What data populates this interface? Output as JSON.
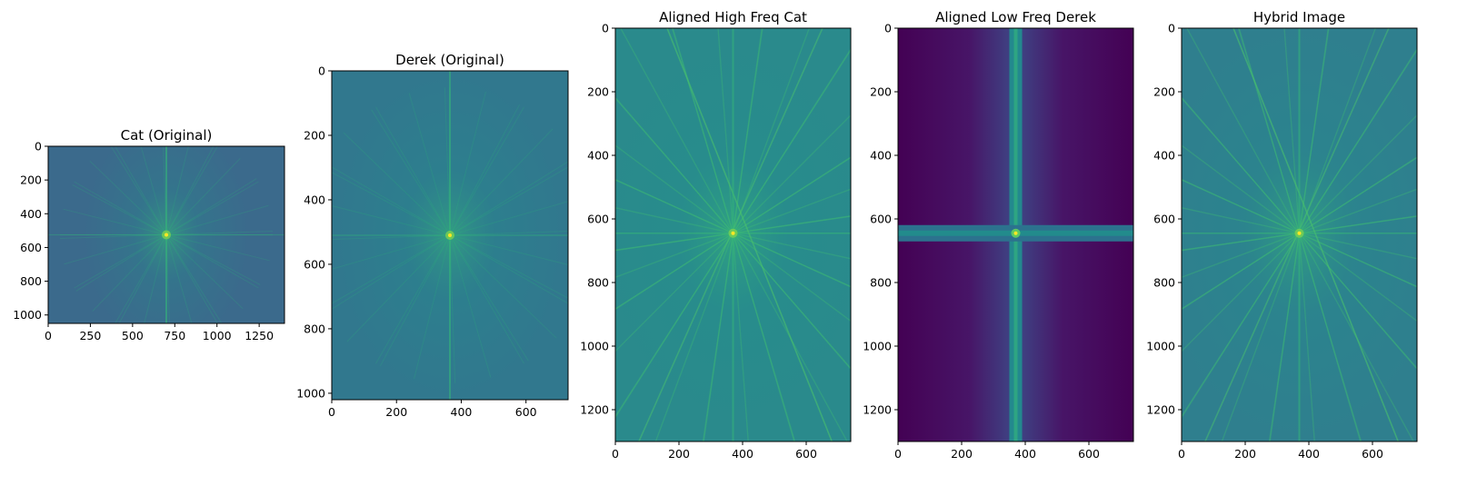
{
  "chart_data": [
    {
      "type": "heatmap",
      "title": "Cat (Original)",
      "image_width": 1400,
      "image_height": 1050,
      "xticks": [
        0,
        250,
        500,
        750,
        1000,
        1250
      ],
      "yticks": [
        0,
        200,
        400,
        600,
        800,
        1000
      ],
      "background_color": "#3b6a8c",
      "center": [
        700,
        525
      ],
      "pattern": "spectrum"
    },
    {
      "type": "heatmap",
      "title": "Derek (Original)",
      "image_width": 730,
      "image_height": 1020,
      "xticks": [
        0,
        200,
        400,
        600
      ],
      "yticks": [
        0,
        200,
        400,
        600,
        800,
        1000
      ],
      "background_color": "#31788e",
      "center": [
        365,
        510
      ],
      "pattern": "spectrum"
    },
    {
      "type": "heatmap",
      "title": "Aligned High Freq Cat",
      "image_width": 740,
      "image_height": 1300,
      "xticks": [
        0,
        200,
        400,
        600
      ],
      "yticks": [
        0,
        200,
        400,
        600,
        800,
        1000,
        1200
      ],
      "background_color": "#2a8a8c",
      "center": [
        370,
        645
      ],
      "pattern": "highfreq"
    },
    {
      "type": "heatmap",
      "title": "Aligned Low Freq Derek",
      "image_width": 740,
      "image_height": 1300,
      "xticks": [
        0,
        200,
        400,
        600
      ],
      "yticks": [
        0,
        200,
        400,
        600,
        800,
        1000,
        1200
      ],
      "background_color": "#440154",
      "center": [
        370,
        645
      ],
      "pattern": "lowfreq"
    },
    {
      "type": "heatmap",
      "title": "Hybrid Image",
      "image_width": 740,
      "image_height": 1300,
      "xticks": [
        0,
        200,
        400,
        600
      ],
      "yticks": [
        0,
        200,
        400,
        600,
        800,
        1000,
        1200
      ],
      "background_color": "#2f7f8e",
      "center": [
        370,
        645
      ],
      "pattern": "highfreq"
    }
  ]
}
